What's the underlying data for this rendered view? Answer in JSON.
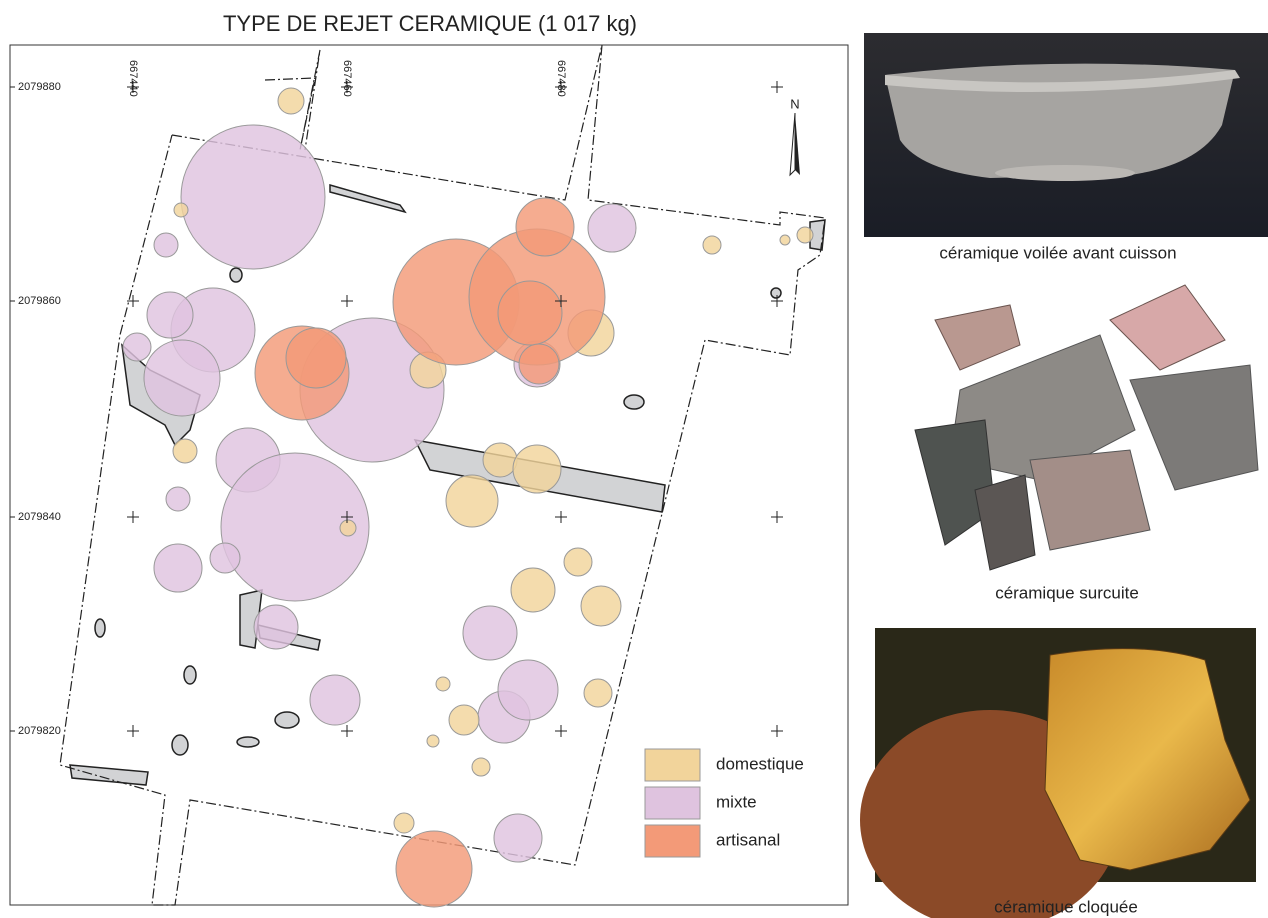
{
  "map": {
    "title": "TYPE DE REJET CERAMIQUE (1 017 kg)",
    "x_labels": [
      "667440",
      "667460",
      "667480"
    ],
    "y_labels": [
      "2079880",
      "2079860",
      "2079840",
      "2079820"
    ],
    "north": "N",
    "legend": [
      {
        "label": "domestique",
        "color": "#f2d49b"
      },
      {
        "label": "mixte",
        "color": "#dfc3df"
      },
      {
        "label": "artisanal",
        "color": "#f39a78"
      }
    ]
  },
  "photos": [
    {
      "caption": "céramique voilée avant cuisson"
    },
    {
      "caption": "céramique surcuite"
    },
    {
      "caption": "céramique cloquée"
    }
  ]
}
